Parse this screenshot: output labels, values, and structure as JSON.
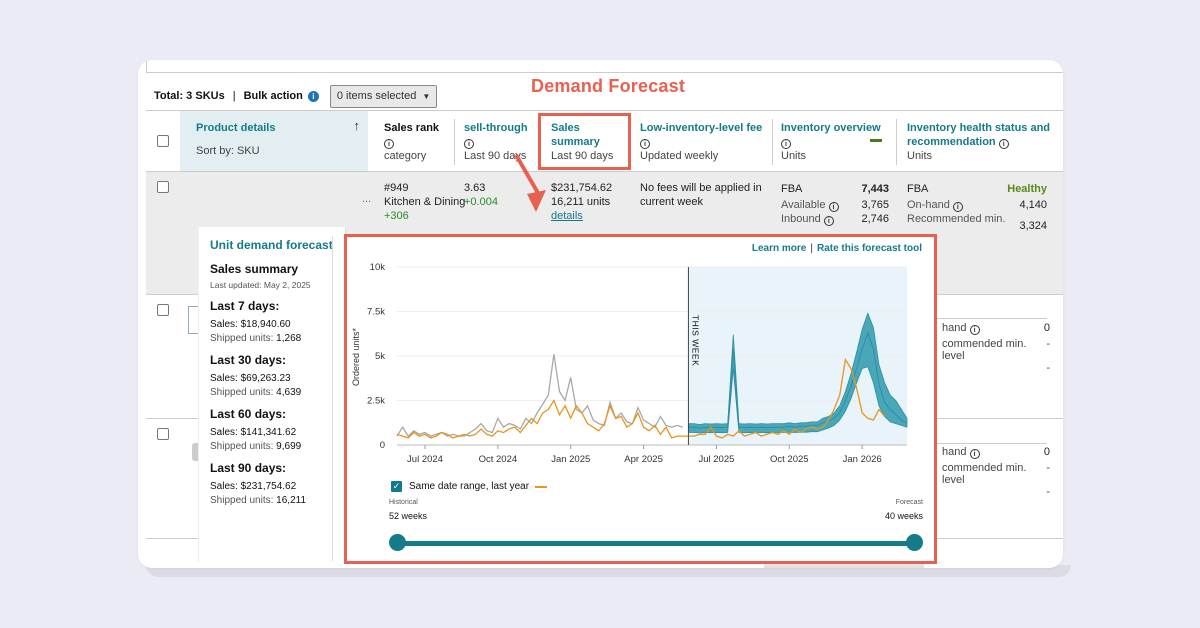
{
  "annotation": {
    "title": "Demand Forecast"
  },
  "toolbar": {
    "total": "Total: 3 SKUs",
    "separator": "|",
    "bulk_action": "Bulk action",
    "info": "i",
    "selected": "0 items selected"
  },
  "columns": {
    "product": {
      "title": "Product details",
      "sort": "Sort by: SKU",
      "sort_arrow": "↑"
    },
    "sales_rank": {
      "title": "Sales rank",
      "sub": "category"
    },
    "sell_through": {
      "title": "sell-through",
      "sub": "Last 90 days"
    },
    "sales_summary": {
      "title_1": "Sales",
      "title_2": "summary",
      "sub": "Last 90 days"
    },
    "low_inventory": {
      "title": "Low-inventory-level fee",
      "sub": "Updated weekly"
    },
    "inventory_overview": {
      "title": "Inventory overview",
      "sub": "Units"
    },
    "inventory_health": {
      "title_1": "Inventory health status and",
      "title_2": "recommendation",
      "sub": "Units"
    }
  },
  "row1": {
    "rank": "#949",
    "category": "Kitchen & Dining",
    "rank_change": "+306",
    "sell_through": "3.63",
    "sell_through_change": "+0.004",
    "sales": "$231,754.62",
    "units": "16,211 units",
    "details": "details",
    "fee_line1": "No fees will be applied in",
    "fee_line2": "current week",
    "fba_label": "FBA",
    "fba_value": "7,443",
    "available_label": "Available",
    "available_value": "3,765",
    "inbound_label": "Inbound",
    "inbound_value": "2,746",
    "health_fba": "FBA",
    "health_status": "Healthy",
    "onhand_label": "On-hand",
    "onhand_value": "4,140",
    "recmin_label": "Recommended min.",
    "recmin_value": "3,324",
    "ellipsis": "..."
  },
  "row2": {
    "onhand_label": "hand",
    "onhand_value": "0",
    "recmin_label": "commended min. level",
    "dash1": "-",
    "dash2": "-"
  },
  "row3": {
    "onhand_label": "hand",
    "onhand_value": "0",
    "recmin_label": "commended min. level",
    "dash1": "-",
    "dash2": "-"
  },
  "popup": {
    "title": "Unit demand forecast",
    "summary_title": "Sales summary",
    "updated": "Last updated: May 2, 2025",
    "periods": [
      {
        "label": "Last 7 days:",
        "sales": "Sales: $18,940.60",
        "units_label": "Shipped units:",
        "units": "1,268"
      },
      {
        "label": "Last 30 days:",
        "sales": "Sales: $69,263.23",
        "units_label": "Shipped units:",
        "units": "4,639"
      },
      {
        "label": "Last 60 days:",
        "sales": "Sales: $141,341.62",
        "units_label": "Shipped units:",
        "units": "9,699"
      },
      {
        "label": "Last 90 days:",
        "sales": "Sales: $231,754.62",
        "units_label": "Shipped units:",
        "units": "16,211"
      }
    ]
  },
  "chart_links": {
    "learn_more": "Learn more",
    "separator": "|",
    "rate": "Rate this forecast tool"
  },
  "legend": {
    "label": "Same date range, last year",
    "check": "✓"
  },
  "range": {
    "historical_label": "Historical",
    "historical_value": "52 weeks",
    "forecast_label": "Forecast",
    "forecast_value": "40 weeks"
  },
  "colors": {
    "accent": "#157a8a",
    "annotation": "#e8604f",
    "last_year": "#e8951e",
    "history": "#a8a8a8",
    "forecast_band": "#4aa7b8",
    "forecast_bg": "#e8f3fa"
  },
  "chart_data": {
    "type": "line",
    "ylabel": "Ordered units*",
    "ylim": [
      0,
      10000
    ],
    "yticks": [
      "10k",
      "7.5k",
      "5k",
      "2.5k",
      "0"
    ],
    "ytick_values": [
      10000,
      7500,
      5000,
      2500,
      0
    ],
    "xticks": [
      "Jul 2024",
      "Oct 2024",
      "Jan 2025",
      "Apr 2025",
      "Jul 2025",
      "Oct 2025",
      "Jan 2026"
    ],
    "xtick_weeks": [
      5,
      18,
      31,
      44,
      57,
      70,
      83
    ],
    "this_week_label": "THIS WEEK",
    "this_week_index": 52,
    "series": [
      {
        "values": [
          500,
          1000,
          500,
          800,
          600,
          700,
          500,
          600,
          700,
          500,
          600,
          500,
          500,
          700,
          900,
          1200,
          800,
          700,
          1500,
          1000,
          1200,
          1100,
          900,
          1500,
          1200,
          1800,
          2300,
          2800,
          5100,
          3000,
          2500,
          3800,
          2000,
          1800,
          2200,
          1400,
          1200,
          1100,
          2400,
          1500,
          1800,
          1300,
          1200,
          2100,
          1400,
          1200,
          1000,
          1600,
          1100,
          1000,
          1100,
          1000
        ]
      },
      {
        "values": [
          600,
          500,
          400,
          700,
          500,
          600,
          400,
          500,
          700,
          600,
          400,
          500,
          600,
          500,
          600,
          900,
          600,
          500,
          800,
          700,
          900,
          1000,
          700,
          1100,
          1500,
          1200,
          1800,
          2000,
          2500,
          1700,
          2200,
          1500,
          2200,
          1800,
          1200,
          1000,
          800,
          1200,
          2200,
          1500,
          1600,
          1000,
          1200,
          1800,
          1000,
          800,
          1100,
          600,
          1000,
          400,
          500,
          500,
          500,
          500,
          600,
          600,
          1000,
          500,
          400,
          600,
          500,
          800,
          500,
          600,
          700,
          500,
          600,
          700,
          600,
          800,
          600,
          900,
          700,
          900,
          1000,
          900,
          1000,
          1400,
          2000,
          2800,
          4800,
          4300,
          3200,
          1800,
          1500,
          1400,
          2000,
          1600
        ]
      },
      {
        "values": [
          1200,
          1200,
          1150,
          1200,
          1180,
          1200,
          1180,
          1200,
          6200,
          1200,
          1180,
          1200,
          1180,
          1200,
          1180,
          1200,
          1200,
          1200,
          1250,
          1200,
          1250,
          1250,
          1300,
          1300,
          1500,
          1600,
          1800,
          2200,
          3000,
          4000,
          5200,
          6500,
          7400,
          6600,
          4500,
          3500,
          2800,
          2500,
          2000,
          1500
        ]
      },
      {
        "values": [
          1000,
          1000,
          950,
          1000,
          980,
          1000,
          980,
          1000,
          5400,
          1000,
          980,
          1000,
          980,
          1000,
          980,
          1000,
          1000,
          1000,
          1050,
          1000,
          1050,
          1050,
          1100,
          1100,
          1250,
          1350,
          1500,
          1800,
          2500,
          3300,
          4300,
          5400,
          6300,
          5400,
          3400,
          2400,
          2000,
          1700,
          1400,
          1200
        ]
      },
      {
        "values": [
          700,
          700,
          680,
          700,
          690,
          700,
          690,
          700,
          4300,
          700,
          690,
          700,
          690,
          700,
          690,
          700,
          700,
          700,
          720,
          700,
          720,
          720,
          750,
          750,
          850,
          950,
          1100,
          1400,
          1900,
          2600,
          3500,
          4300,
          4400,
          3500,
          2200,
          1600,
          1300,
          1200,
          1100,
          1000
        ]
      }
    ]
  }
}
